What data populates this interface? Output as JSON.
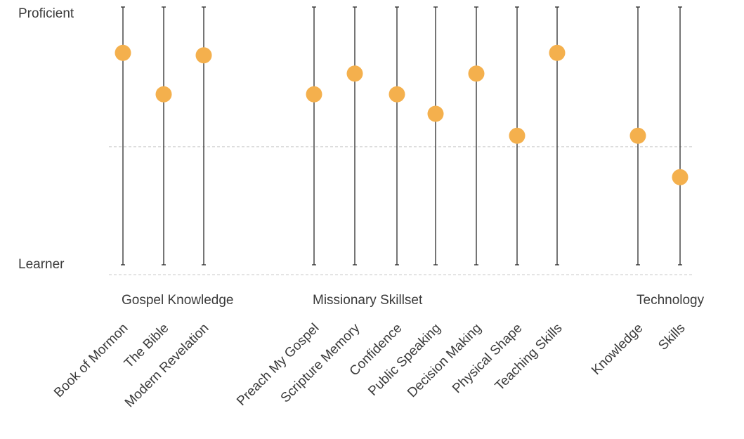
{
  "chart_data": {
    "type": "scatter",
    "y_axis": {
      "top_label": "Proficient",
      "bottom_label": "Learner",
      "range": [
        0,
        100
      ]
    },
    "reference_lines": [
      52.5,
      0
    ],
    "groups": [
      {
        "label": "Gospel Knowledge",
        "categories": [
          {
            "label": "Book of Mormon",
            "value": 91
          },
          {
            "label": "The Bible",
            "value": 74
          },
          {
            "label": "Modern Revelation",
            "value": 90
          }
        ]
      },
      {
        "label": "Missionary Skillset",
        "categories": [
          {
            "label": "Preach My Gospel",
            "value": 74
          },
          {
            "label": "Scripture Memory",
            "value": 82.5
          },
          {
            "label": "Confidence",
            "value": 74
          },
          {
            "label": "Public Speaking",
            "value": 66
          },
          {
            "label": "Decision Making",
            "value": 82.5
          },
          {
            "label": "Physical Shape",
            "value": 57
          },
          {
            "label": "Teaching Skills",
            "value": 91
          }
        ]
      },
      {
        "label": "Technology",
        "categories": [
          {
            "label": "Knowledge",
            "value": 57
          },
          {
            "label": "Skills",
            "value": 40
          }
        ]
      }
    ],
    "colors": {
      "point": "#f4b04d",
      "stem": "#2b2b2b",
      "reference": "#c8c8c8",
      "text": "#3a3a3a"
    }
  }
}
